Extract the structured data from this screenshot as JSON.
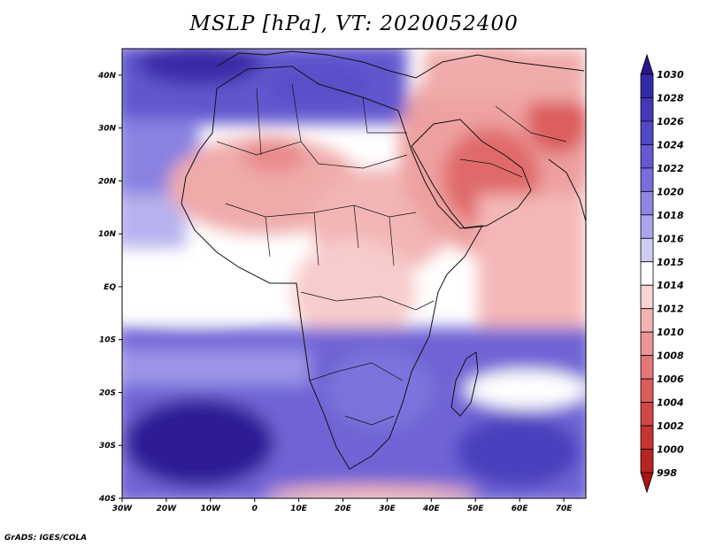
{
  "title": "MSLP [hPa], VT: 2020052400",
  "credit": "GrADS: IGES/COLA",
  "map": {
    "lat_labels": [
      "40N",
      "30N",
      "20N",
      "10N",
      "EQ",
      "10S",
      "20S",
      "30S",
      "40S"
    ],
    "lon_labels": [
      "30W",
      "20W",
      "10W",
      "0",
      "10E",
      "20E",
      "30E",
      "40E",
      "50E",
      "60E",
      "70E"
    ],
    "lon_range": [
      -30,
      75
    ],
    "lat_range": [
      -40,
      45
    ]
  },
  "colorbar": {
    "levels": [
      "1030",
      "1028",
      "1026",
      "1024",
      "1022",
      "1020",
      "1018",
      "1016",
      "1015",
      "1014",
      "1012",
      "1010",
      "1008",
      "1006",
      "1004",
      "1002",
      "1000",
      "998"
    ],
    "colors": [
      "#2a158c",
      "#352aa6",
      "#4338b8",
      "#5247c6",
      "#6559d1",
      "#786ddb",
      "#8e86e3",
      "#aba6ec",
      "#d0ceef",
      "#ffffff",
      "#fbd4d4",
      "#f4b3b3",
      "#ec9595",
      "#e47777",
      "#dd5b5b",
      "#d44646",
      "#c73333",
      "#b82323",
      "#a81313"
    ]
  }
}
